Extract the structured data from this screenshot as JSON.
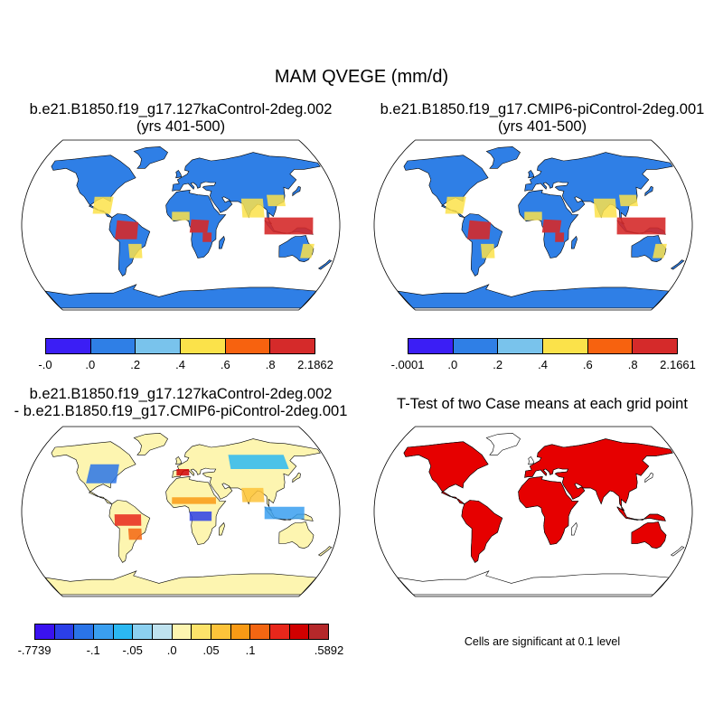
{
  "title": "MAM QVEGE (mm/d)",
  "panels": {
    "tl": {
      "line1": "b.e21.B1850.f19_g17.127kaControl-2deg.002",
      "line2": "(yrs 401-500)"
    },
    "tr": {
      "line1": "b.e21.B1850.f19_g17.CMIP6-piControl-2deg.001",
      "line2": "(yrs 401-500)"
    },
    "bl": {
      "line1": "b.e21.B1850.f19_g17.127kaControl-2deg.002",
      "line2": "- b.e21.B1850.f19_g17.CMIP6-piControl-2deg.001"
    },
    "br": {
      "line1": "T-Test of two Case means at each grid point"
    }
  },
  "colorbar1": {
    "colors": [
      "#3b1ef5",
      "#2f7fe6",
      "#79c3ec",
      "#fbe24a",
      "#f7620f",
      "#d52a2a"
    ],
    "labels": [
      "-.0",
      ".0",
      ".2",
      ".4",
      ".6",
      ".8",
      "2.1862"
    ]
  },
  "colorbar2": {
    "colors": [
      "#3b1ef5",
      "#2f7fe6",
      "#79c3ec",
      "#fbe24a",
      "#f7620f",
      "#d52a2a"
    ],
    "labels": [
      "-.0001",
      ".0",
      ".2",
      ".4",
      ".6",
      ".8",
      "2.1661"
    ]
  },
  "colorbar3": {
    "colors": [
      "#3a12f0",
      "#2b3fe8",
      "#2a74e8",
      "#3a9ff0",
      "#2bb8f2",
      "#8cd0f0",
      "#bfe2ef",
      "#fdf5b0",
      "#fde36a",
      "#fdc33a",
      "#f99a15",
      "#f36612",
      "#e8271b",
      "#d00000",
      "#b5282a"
    ],
    "labels": [
      "-.7739",
      "-.1",
      "-.05",
      ".0",
      ".05",
      ".1",
      ".5892"
    ]
  },
  "note": "Cells are significant at 0.1 level",
  "colors": {
    "base_land": "#2f7fe6",
    "hot": "#d52a2a",
    "diff_land": "#fdf5b0",
    "sig": "#e60000"
  }
}
